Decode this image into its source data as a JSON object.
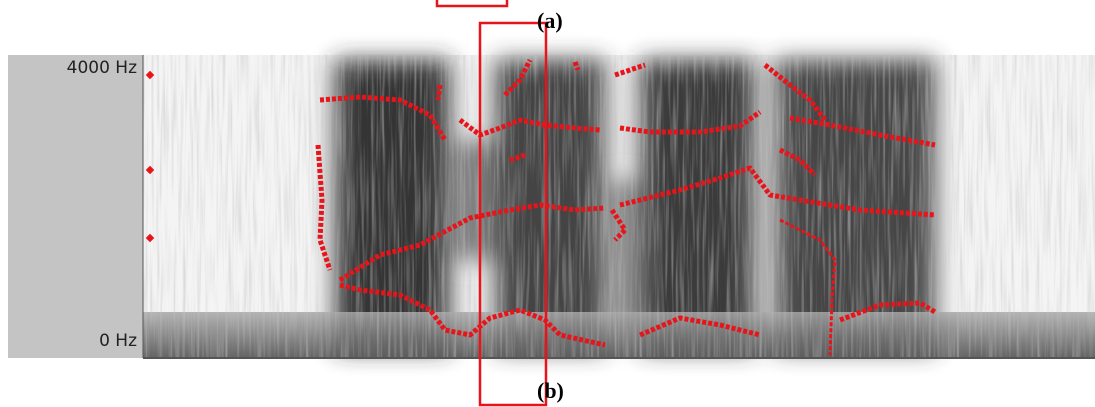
{
  "labels": {
    "top": "(a)",
    "bottom": "(b)"
  },
  "axis": {
    "top": "4000 Hz",
    "bottom": "0 Hz"
  }
}
